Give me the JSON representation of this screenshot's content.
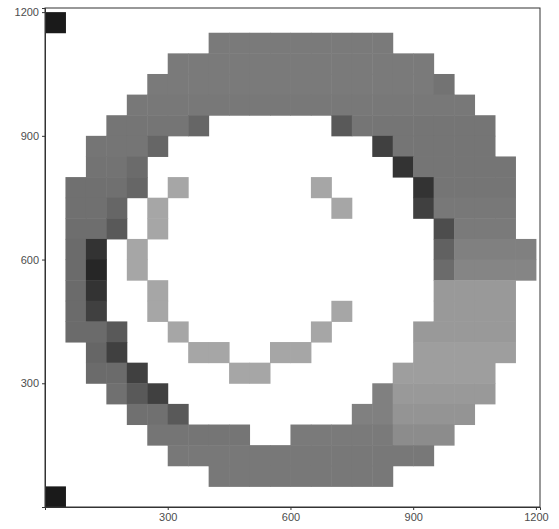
{
  "chart_data": {
    "type": "heatmap",
    "x": [
      25,
      75,
      125,
      175,
      225,
      275,
      325,
      375,
      425,
      475,
      525,
      575,
      625,
      675,
      725,
      775,
      825,
      875,
      925,
      975,
      1025,
      1075,
      1125,
      1175
    ],
    "y": [
      1175,
      1125,
      1075,
      1025,
      975,
      925,
      875,
      825,
      775,
      725,
      675,
      625,
      575,
      525,
      475,
      425,
      375,
      325,
      275,
      225,
      175,
      125,
      75,
      25
    ],
    "values": [
      [
        10,
        null,
        null,
        null,
        null,
        null,
        null,
        null,
        null,
        null,
        null,
        null,
        null,
        null,
        null,
        null,
        null,
        null,
        null,
        null,
        null,
        null,
        null,
        null
      ],
      [
        null,
        null,
        null,
        null,
        null,
        null,
        null,
        null,
        48,
        48,
        48,
        48,
        48,
        48,
        48,
        48,
        48,
        null,
        null,
        null,
        null,
        null,
        null,
        null
      ],
      [
        null,
        null,
        null,
        null,
        null,
        null,
        48,
        48,
        48,
        48,
        48,
        48,
        48,
        48,
        48,
        48,
        48,
        48,
        48,
        null,
        null,
        null,
        null,
        null
      ],
      [
        null,
        null,
        null,
        null,
        null,
        48,
        48,
        48,
        48,
        48,
        48,
        48,
        48,
        48,
        48,
        48,
        48,
        48,
        48,
        45,
        null,
        null,
        null,
        null
      ],
      [
        null,
        null,
        null,
        null,
        47,
        47,
        47,
        47,
        47,
        47,
        47,
        47,
        47,
        47,
        47,
        47,
        47,
        47,
        47,
        47,
        47,
        null,
        null,
        null
      ],
      [
        null,
        null,
        null,
        46,
        46,
        46,
        46,
        40,
        null,
        null,
        null,
        null,
        null,
        null,
        35,
        46,
        46,
        46,
        46,
        46,
        46,
        46,
        null,
        null
      ],
      [
        null,
        null,
        46,
        46,
        46,
        40,
        null,
        null,
        null,
        null,
        null,
        null,
        null,
        null,
        null,
        null,
        25,
        46,
        46,
        46,
        46,
        46,
        null,
        null
      ],
      [
        null,
        null,
        45,
        45,
        42,
        null,
        null,
        null,
        null,
        null,
        null,
        null,
        null,
        null,
        null,
        null,
        null,
        20,
        46,
        46,
        46,
        46,
        46,
        null
      ],
      [
        null,
        44,
        44,
        44,
        40,
        null,
        65,
        null,
        null,
        null,
        null,
        null,
        null,
        65,
        null,
        null,
        null,
        null,
        20,
        46,
        46,
        46,
        46,
        null
      ],
      [
        null,
        44,
        44,
        40,
        null,
        65,
        null,
        null,
        null,
        null,
        null,
        null,
        null,
        null,
        65,
        null,
        null,
        null,
        25,
        47,
        47,
        47,
        47,
        null
      ],
      [
        null,
        43,
        43,
        35,
        null,
        65,
        null,
        null,
        null,
        null,
        null,
        null,
        null,
        null,
        null,
        null,
        null,
        null,
        null,
        30,
        48,
        48,
        48,
        null
      ],
      [
        null,
        42,
        20,
        null,
        65,
        null,
        null,
        null,
        null,
        null,
        null,
        null,
        null,
        null,
        null,
        null,
        null,
        null,
        null,
        38,
        50,
        50,
        50,
        50
      ],
      [
        null,
        42,
        15,
        null,
        65,
        null,
        null,
        null,
        null,
        null,
        null,
        null,
        null,
        null,
        null,
        null,
        null,
        null,
        null,
        42,
        52,
        52,
        52,
        52
      ],
      [
        null,
        42,
        20,
        null,
        null,
        65,
        null,
        null,
        null,
        null,
        null,
        null,
        null,
        null,
        null,
        null,
        null,
        null,
        null,
        60,
        60,
        60,
        60,
        null
      ],
      [
        null,
        42,
        25,
        null,
        null,
        65,
        null,
        null,
        null,
        null,
        null,
        null,
        null,
        null,
        65,
        null,
        null,
        null,
        null,
        60,
        60,
        60,
        60,
        null
      ],
      [
        null,
        42,
        42,
        35,
        null,
        null,
        65,
        null,
        null,
        null,
        null,
        null,
        null,
        65,
        null,
        null,
        null,
        null,
        60,
        60,
        60,
        60,
        60,
        null
      ],
      [
        null,
        null,
        40,
        25,
        null,
        null,
        null,
        65,
        65,
        null,
        null,
        65,
        65,
        null,
        null,
        null,
        null,
        null,
        62,
        62,
        62,
        62,
        62,
        null
      ],
      [
        null,
        null,
        42,
        42,
        25,
        null,
        null,
        null,
        null,
        65,
        65,
        null,
        null,
        null,
        null,
        null,
        null,
        62,
        62,
        62,
        62,
        62,
        null,
        null
      ],
      [
        null,
        null,
        null,
        44,
        35,
        25,
        null,
        null,
        null,
        null,
        null,
        null,
        null,
        null,
        null,
        null,
        50,
        60,
        60,
        60,
        60,
        60,
        null,
        null
      ],
      [
        null,
        null,
        null,
        null,
        44,
        44,
        35,
        null,
        null,
        null,
        null,
        null,
        null,
        null,
        null,
        50,
        50,
        58,
        58,
        58,
        58,
        null,
        null,
        null
      ],
      [
        null,
        null,
        null,
        null,
        null,
        46,
        46,
        46,
        46,
        46,
        null,
        null,
        48,
        48,
        48,
        48,
        48,
        55,
        55,
        55,
        null,
        null,
        null,
        null
      ],
      [
        null,
        null,
        null,
        null,
        null,
        null,
        47,
        47,
        47,
        47,
        47,
        47,
        47,
        47,
        47,
        47,
        47,
        47,
        47,
        null,
        null,
        null,
        null,
        null
      ],
      [
        null,
        null,
        null,
        null,
        null,
        null,
        null,
        null,
        47,
        47,
        47,
        47,
        47,
        47,
        47,
        47,
        47,
        null,
        null,
        null,
        null,
        null,
        null,
        null
      ],
      [
        10,
        null,
        null,
        null,
        null,
        null,
        null,
        null,
        null,
        null,
        null,
        null,
        null,
        null,
        null,
        null,
        null,
        null,
        null,
        null,
        null,
        null,
        null,
        null
      ]
    ],
    "zlim": [
      0,
      100
    ],
    "xlim": [
      0,
      1210
    ],
    "ylim": [
      0,
      1210
    ],
    "xticks": [
      300,
      600,
      900,
      1200
    ],
    "yticks": [
      300,
      600,
      900,
      1200
    ],
    "grid": false
  }
}
